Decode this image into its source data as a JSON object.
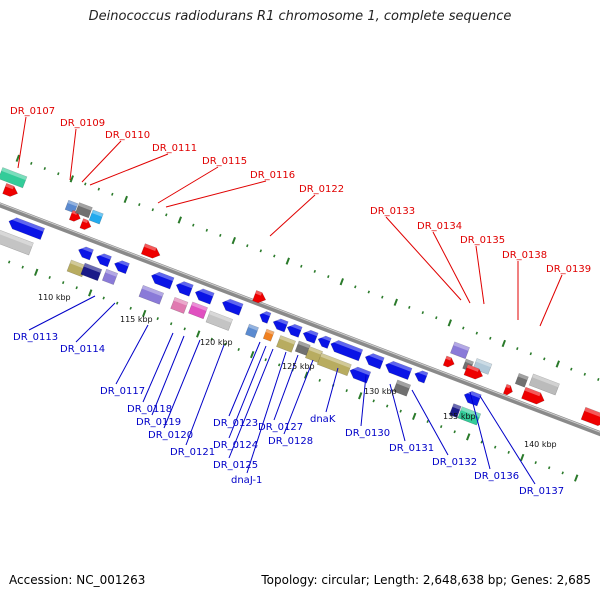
{
  "title": "Deinococcus radiodurans R1 chromosome 1, complete sequence",
  "footer": {
    "accession": "Accession: NC_001263",
    "stats": "Topology: circular; Length: 2,648,638 bp; Genes: 2,685"
  },
  "colors": {
    "forward_label": "#e00000",
    "reverse_label": "#0000c8",
    "backbone": "#8a8a8a",
    "tick": "#2a7a2a"
  },
  "scale_labels": [
    "110 kbp",
    "115 kbp",
    "120 kbp",
    "125 kbp",
    "130 kbp",
    "135 kbp",
    "140 kbp"
  ],
  "forward_gene_labels": [
    "DR_0107",
    "DR_0109",
    "DR_0110",
    "DR_0111",
    "DR_0115",
    "DR_0116",
    "DR_0122",
    "DR_0133",
    "DR_0134",
    "DR_0135",
    "DR_0138",
    "DR_0139"
  ],
  "reverse_gene_labels": [
    "DR_0113",
    "DR_0114",
    "DR_0117",
    "DR_0118",
    "DR_0119",
    "DR_0120",
    "DR_0121",
    "DR_0123",
    "DR_0124",
    "DR_0125",
    "dnaJ-1",
    "DR_0127",
    "DR_0128",
    "dnaK",
    "DR_0130",
    "DR_0131",
    "DR_0132",
    "DR_0136",
    "DR_0137"
  ]
}
